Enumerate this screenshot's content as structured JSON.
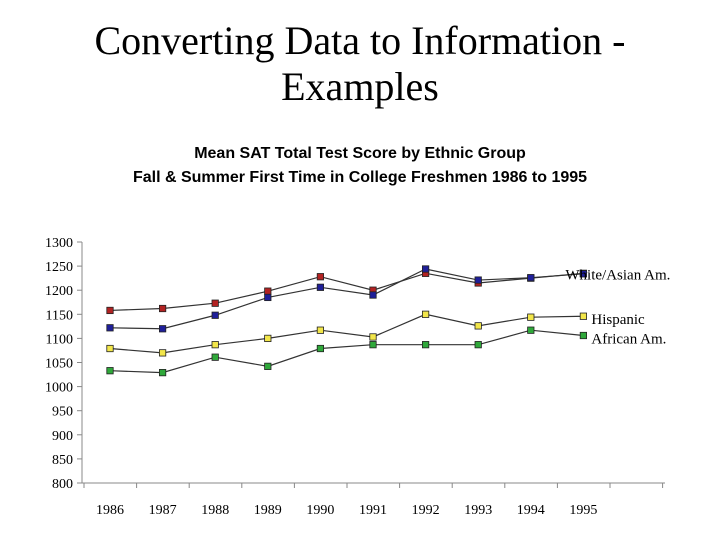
{
  "slide": {
    "title_line1": "Converting Data to Information -",
    "title_line2": "Examples"
  },
  "chart_data": {
    "type": "line",
    "title": "Mean SAT Total Test Score by Ethnic Group",
    "subtitle": "Fall & Summer First Time in College Freshmen 1986 to 1995",
    "xlabel": "",
    "ylabel": "",
    "categories": [
      "1986",
      "1987",
      "1988",
      "1989",
      "1990",
      "1991",
      "1992",
      "1993",
      "1994",
      "1995"
    ],
    "ylim": [
      800,
      1300
    ],
    "yticks": [
      800,
      850,
      900,
      950,
      1000,
      1050,
      1100,
      1150,
      1200,
      1250,
      1300
    ],
    "grid": false,
    "legend": "inline-labels-at-right",
    "series": [
      {
        "key": "white",
        "values": [
          1158,
          1162,
          1173,
          1198,
          1228,
          1200,
          1235,
          1215,
          1225,
          1235
        ],
        "color": "#b22222"
      },
      {
        "key": "asian",
        "values": [
          1122,
          1120,
          1148,
          1185,
          1206,
          1190,
          1244,
          1221,
          1226,
          1234
        ],
        "color": "#1f1f99"
      },
      {
        "key": "hispanic",
        "values": [
          1079,
          1070,
          1087,
          1100,
          1117,
          1103,
          1150,
          1126,
          1144,
          1146
        ],
        "color": "#f2e64a"
      },
      {
        "key": "african",
        "values": [
          1033,
          1029,
          1061,
          1042,
          1079,
          1087,
          1087,
          1087,
          1117,
          1106
        ],
        "color": "#2fa83a"
      }
    ],
    "inline_labels": [
      {
        "text": "White/Asian Am.",
        "series": [
          "white",
          "asian"
        ]
      },
      {
        "text": "Hispanic",
        "series": [
          "hispanic"
        ]
      },
      {
        "text": "African Am.",
        "series": [
          "african"
        ]
      }
    ]
  }
}
